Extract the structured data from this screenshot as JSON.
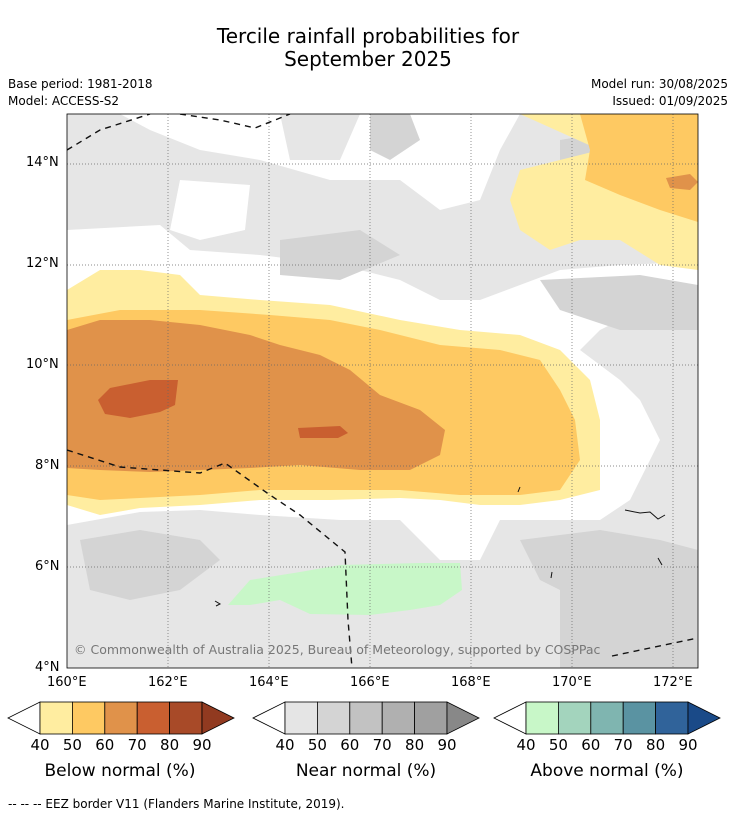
{
  "title_line1": "Tercile rainfall probabilities for",
  "title_line2": "September 2025",
  "base_period": "Base period: 1981-2018",
  "model": "Model: ACCESS-S2",
  "model_run": "Model run: 30/08/2025",
  "issued": "Issued: 01/09/2025",
  "copyright": "© Commonwealth of Australia 2025, Bureau of Meteorology, supported by COSPPac",
  "footer": "--  --  -- EEZ border V11 (Flanders Marine Institute, 2019).",
  "lat_labels": [
    "14°N",
    "12°N",
    "10°N",
    "8°N",
    "6°N",
    "4°N"
  ],
  "lon_labels": [
    "160°E",
    "162°E",
    "164°E",
    "166°E",
    "168°E",
    "170°E",
    "172°E"
  ],
  "colors": {
    "below": [
      "#ffeda0",
      "#fec962",
      "#e0924a",
      "#c95f30",
      "#a84a28",
      "#913a20"
    ],
    "near": [
      "#e5e5e5",
      "#d4d4d4",
      "#c2c2c2",
      "#b0b0b0",
      "#a0a0a0",
      "#888888"
    ],
    "above": [
      "#c8f7c8",
      "#a3d4bd",
      "#7fb5b0",
      "#5a93a2",
      "#30639a",
      "#1a4a88"
    ]
  },
  "legends": [
    {
      "label": "Below normal (%)",
      "ticks": [
        "40",
        "50",
        "60",
        "70",
        "80",
        "90"
      ]
    },
    {
      "label": "Near normal (%)",
      "ticks": [
        "40",
        "50",
        "60",
        "70",
        "80",
        "90"
      ]
    },
    {
      "label": "Above normal (%)",
      "ticks": [
        "40",
        "50",
        "60",
        "70",
        "80",
        "90"
      ]
    }
  ]
}
